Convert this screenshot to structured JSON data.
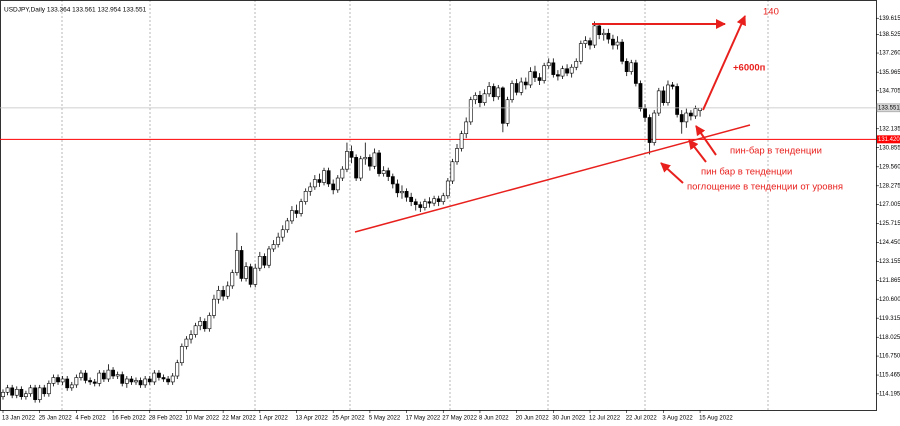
{
  "chart_data": {
    "type": "candlestick",
    "title": "USDJPY,Daily 133.364 133.561 132.954 133.551",
    "categories": [
      "13 Jan 2022",
      null,
      null,
      null,
      null,
      null,
      null,
      null,
      "25 Jan 2022",
      null,
      null,
      null,
      null,
      null,
      null,
      null,
      "4 Feb 2022",
      null,
      null,
      null,
      null,
      null,
      null,
      null,
      "16 Feb 2022",
      null,
      null,
      null,
      null,
      null,
      null,
      null,
      "28 Feb 2022",
      null,
      null,
      null,
      null,
      null,
      null,
      null,
      "10 Mar 2022",
      null,
      null,
      null,
      null,
      null,
      null,
      null,
      "22 Mar 2022",
      null,
      null,
      null,
      null,
      null,
      null,
      null,
      "1 Apr 2022",
      null,
      null,
      null,
      null,
      null,
      null,
      null,
      "13 Apr 2022",
      null,
      null,
      null,
      null,
      null,
      null,
      null,
      "25 Apr 2022",
      null,
      null,
      null,
      null,
      null,
      null,
      null,
      "5 May 2022",
      null,
      null,
      null,
      null,
      null,
      null,
      null,
      "17 May 2022",
      null,
      null,
      null,
      null,
      null,
      null,
      null,
      "27 May 2022",
      null,
      null,
      null,
      null,
      null,
      null,
      null,
      "8 Jun 2022",
      null,
      null,
      null,
      null,
      null,
      null,
      null,
      "20 Jun 2022",
      null,
      null,
      null,
      null,
      null,
      null,
      null,
      "30 Jun 2022",
      null,
      null,
      null,
      null,
      null,
      null,
      null,
      "12 Jul 2022",
      null,
      null,
      null,
      null,
      null,
      null,
      null,
      "22 Jul 2022",
      null,
      null,
      null,
      null,
      null,
      null,
      null,
      "3 Aug 2022",
      null,
      null,
      null,
      null,
      null,
      null,
      null,
      "15 Aug 2022"
    ],
    "open": [
      114.0,
      114.3,
      114.6,
      114.1,
      114.5,
      114.0,
      114.2,
      114.6,
      113.8,
      114.6,
      114.2,
      114.9,
      115.3,
      115.0,
      115.2,
      114.6,
      114.8,
      115.3,
      115.6,
      115.1,
      115.0,
      114.9,
      115.6,
      115.2,
      115.8,
      115.4,
      115.5,
      114.9,
      115.2,
      115.0,
      115.1,
      114.8,
      115.2,
      115.0,
      115.6,
      115.3,
      115.2,
      115.0,
      115.4,
      116.3,
      117.4,
      117.9,
      118.2,
      118.8,
      119.1,
      118.6,
      119.5,
      120.6,
      121.2,
      120.8,
      121.5,
      122.4,
      123.9,
      122.0,
      122.8,
      121.6,
      122.7,
      123.5,
      122.9,
      124.0,
      124.3,
      124.8,
      125.3,
      125.9,
      126.6,
      126.4,
      127.2,
      127.9,
      128.2,
      128.7,
      128.5,
      129.3,
      128.4,
      128.0,
      128.8,
      129.4,
      130.6,
      130.2,
      128.8,
      130.1,
      130.2,
      129.6,
      130.5,
      129.1,
      129.3,
      128.9,
      128.4,
      127.8,
      127.9,
      127.5,
      127.2,
      127.0,
      126.8,
      127.2,
      127.1,
      127.4,
      127.2,
      127.6,
      128.6,
      129.9,
      130.8,
      131.8,
      132.6,
      134.1,
      134.4,
      133.9,
      134.5,
      135.0,
      134.3,
      134.9,
      132.5,
      134.1,
      135.2,
      134.6,
      135.3,
      135.1,
      136.0,
      135.6,
      135.4,
      136.4,
      136.6,
      135.8,
      135.7,
      136.2,
      135.9,
      136.3,
      136.7,
      137.9,
      138.1,
      137.8,
      139.1,
      138.5,
      138.6,
      138.2,
      137.8,
      138.0,
      136.7,
      136.0,
      136.6,
      135.2,
      133.5,
      132.9,
      131.2,
      133.2,
      134.7,
      133.9,
      135.1,
      135.0,
      133.1,
      132.6,
      133.2,
      133.0,
      133.364
    ],
    "high": [
      114.5,
      114.8,
      114.8,
      114.7,
      114.7,
      114.4,
      114.8,
      114.8,
      114.8,
      114.8,
      115.1,
      115.5,
      115.5,
      115.4,
      115.4,
      115.0,
      115.5,
      115.8,
      115.8,
      115.3,
      115.2,
      115.8,
      115.8,
      116.2,
      116.0,
      115.7,
      115.7,
      115.4,
      115.4,
      115.3,
      115.3,
      115.4,
      115.4,
      115.8,
      115.8,
      115.5,
      115.4,
      115.6,
      116.5,
      117.6,
      118.1,
      118.5,
      119.0,
      119.4,
      119.3,
      119.7,
      120.9,
      121.5,
      121.5,
      121.8,
      122.6,
      125.1,
      124.2,
      123.1,
      123.0,
      123.0,
      123.8,
      123.7,
      124.2,
      124.6,
      125.1,
      125.6,
      126.1,
      126.9,
      127.0,
      127.4,
      128.1,
      128.5,
      129.0,
      129.1,
      129.5,
      129.5,
      128.7,
      129.0,
      129.6,
      131.2,
      131.0,
      130.4,
      130.3,
      131.2,
      130.4,
      130.8,
      130.7,
      129.6,
      129.5,
      129.1,
      128.7,
      128.3,
      128.1,
      127.8,
      127.4,
      127.2,
      127.4,
      127.5,
      127.6,
      127.6,
      127.8,
      128.8,
      130.1,
      131.1,
      132.0,
      132.9,
      134.3,
      134.6,
      134.7,
      134.8,
      135.3,
      135.2,
      135.1,
      135.0,
      134.3,
      135.4,
      135.5,
      135.6,
      135.6,
      136.3,
      136.4,
      135.9,
      136.6,
      136.9,
      136.9,
      136.1,
      136.4,
      136.5,
      136.5,
      136.9,
      138.1,
      138.4,
      138.3,
      139.4,
      139.2,
      138.9,
      138.9,
      138.5,
      138.4,
      138.2,
      136.9,
      136.8,
      136.8,
      135.4,
      133.8,
      133.1,
      133.4,
      134.9,
      135.0,
      135.4,
      135.3,
      135.2,
      133.4,
      133.5,
      133.4,
      133.7,
      133.561
    ],
    "low": [
      113.8,
      114.1,
      113.9,
      113.9,
      113.8,
      113.8,
      114.0,
      113.6,
      113.6,
      114.0,
      114.0,
      114.7,
      114.8,
      114.8,
      114.4,
      114.4,
      114.6,
      115.1,
      114.9,
      114.8,
      114.7,
      114.7,
      115.0,
      115.0,
      115.2,
      115.2,
      114.7,
      114.6,
      114.8,
      114.8,
      114.6,
      114.6,
      114.8,
      114.8,
      115.1,
      115.0,
      114.8,
      114.8,
      115.2,
      116.1,
      117.2,
      117.6,
      118.0,
      118.5,
      118.4,
      118.4,
      119.3,
      120.3,
      120.5,
      120.6,
      121.3,
      122.2,
      121.8,
      121.8,
      121.4,
      121.4,
      122.5,
      122.7,
      122.7,
      123.8,
      124.1,
      124.5,
      125.1,
      125.7,
      126.1,
      126.2,
      127.0,
      127.6,
      128.0,
      128.2,
      128.3,
      128.2,
      127.7,
      127.8,
      128.6,
      129.2,
      129.8,
      128.6,
      128.6,
      129.7,
      129.3,
      129.4,
      128.9,
      128.9,
      128.6,
      128.1,
      127.5,
      127.4,
      127.2,
      126.9,
      126.6,
      126.5,
      126.6,
      126.8,
      126.9,
      126.9,
      127.0,
      127.4,
      128.4,
      129.7,
      130.6,
      131.5,
      132.4,
      133.8,
      133.6,
      133.7,
      134.3,
      134.0,
      134.1,
      131.9,
      132.3,
      133.9,
      134.4,
      134.4,
      134.8,
      134.9,
      135.3,
      135.1,
      135.2,
      136.2,
      135.6,
      135.4,
      135.5,
      135.7,
      135.6,
      136.1,
      136.5,
      137.6,
      137.5,
      137.6,
      138.2,
      138.1,
      137.9,
      137.5,
      137.5,
      136.5,
      135.7,
      135.8,
      135.0,
      133.3,
      132.6,
      130.4,
      131.0,
      133.0,
      133.7,
      133.7,
      134.8,
      132.9,
      131.8,
      132.2,
      132.7,
      132.8,
      132.954
    ],
    "close": [
      114.3,
      114.6,
      114.1,
      114.5,
      114.0,
      114.2,
      114.6,
      113.8,
      114.6,
      114.2,
      114.9,
      115.3,
      115.0,
      115.2,
      114.6,
      114.8,
      115.3,
      115.6,
      115.1,
      115.0,
      114.9,
      115.6,
      115.2,
      115.8,
      115.4,
      115.5,
      114.9,
      115.2,
      115.0,
      115.1,
      114.8,
      115.2,
      115.0,
      115.6,
      115.3,
      115.2,
      115.0,
      115.4,
      116.3,
      117.4,
      117.9,
      118.2,
      118.8,
      119.1,
      118.6,
      119.5,
      120.6,
      121.2,
      120.8,
      121.5,
      122.4,
      123.9,
      122.0,
      122.8,
      121.6,
      122.7,
      123.5,
      122.9,
      124.0,
      124.3,
      124.8,
      125.3,
      125.9,
      126.6,
      126.4,
      127.2,
      127.9,
      128.2,
      128.7,
      128.5,
      129.3,
      128.4,
      128.0,
      128.8,
      129.4,
      130.6,
      130.2,
      128.8,
      130.1,
      130.2,
      129.6,
      130.5,
      129.1,
      129.3,
      128.9,
      128.4,
      127.8,
      127.9,
      127.5,
      127.2,
      127.0,
      126.8,
      127.2,
      127.1,
      127.4,
      127.2,
      127.6,
      128.6,
      129.9,
      130.8,
      131.8,
      132.6,
      134.1,
      134.4,
      133.9,
      134.5,
      135.0,
      134.3,
      134.9,
      132.5,
      134.1,
      135.2,
      134.6,
      135.3,
      135.1,
      136.0,
      135.6,
      135.4,
      136.4,
      136.6,
      135.8,
      135.7,
      136.2,
      135.9,
      136.3,
      136.7,
      137.9,
      138.1,
      137.8,
      139.1,
      138.5,
      138.6,
      138.2,
      137.8,
      138.0,
      136.7,
      136.0,
      136.6,
      135.2,
      133.5,
      132.9,
      131.2,
      133.2,
      134.7,
      133.9,
      135.1,
      135.0,
      133.1,
      132.6,
      133.2,
      133.0,
      133.5,
      133.551
    ],
    "up_color": "#ffffff",
    "down_color": "#000000",
    "ylim": [
      113.1,
      140.85
    ],
    "yticks": [
      139.615,
      138.525,
      {
        "value": 137.26,
        "label": "137.260"
      },
      135.965,
      134.705,
      132.135,
      130.855,
      {
        "value": 129.56,
        "label": "129.560"
      },
      128.275,
      127.005,
      125.715,
      {
        "value": 124.45,
        "label": "124.450"
      },
      123.155,
      121.865,
      {
        "value": 120.6,
        "label": "120.600"
      },
      119.315,
      118.025,
      {
        "value": 116.75,
        "label": "116.750"
      },
      115.465,
      114.195
    ],
    "level": {
      "value": 131.42,
      "label": "131.420"
    },
    "level_color": "#ff0000",
    "annotations": [
      "140",
      "+6000п",
      "пин-бар в тенденции",
      "пин бар в тенденции",
      "поглощение в тенденции от уровня"
    ]
  }
}
